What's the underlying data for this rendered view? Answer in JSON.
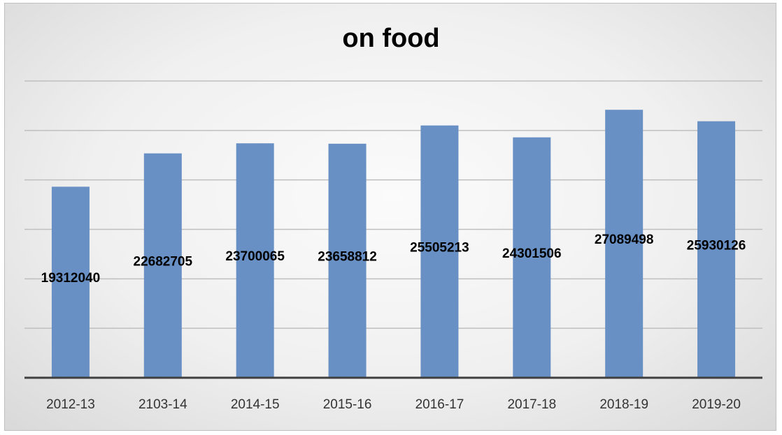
{
  "chart_data": {
    "type": "bar",
    "title": "on food",
    "categories": [
      "2012-13",
      "2103-14",
      "2014-15",
      "2015-16",
      "2016-17",
      "2017-18",
      "2018-19",
      "2019-20"
    ],
    "values": [
      19312040,
      22682705,
      23700065,
      23658812,
      25505213,
      24301506,
      27089498,
      25930126
    ],
    "data_labels": [
      "19312040",
      "22682705",
      "23700065",
      "23658812",
      "25505213",
      "24301506",
      "27089498",
      "25930126"
    ],
    "xlabel": "",
    "ylabel": "",
    "ylim": [
      0,
      30000000
    ],
    "grid": true,
    "legend": "none",
    "colors": {
      "bar": "#6890c4",
      "axis": "#3f3f3f",
      "grid": "#bfbfbf"
    }
  }
}
